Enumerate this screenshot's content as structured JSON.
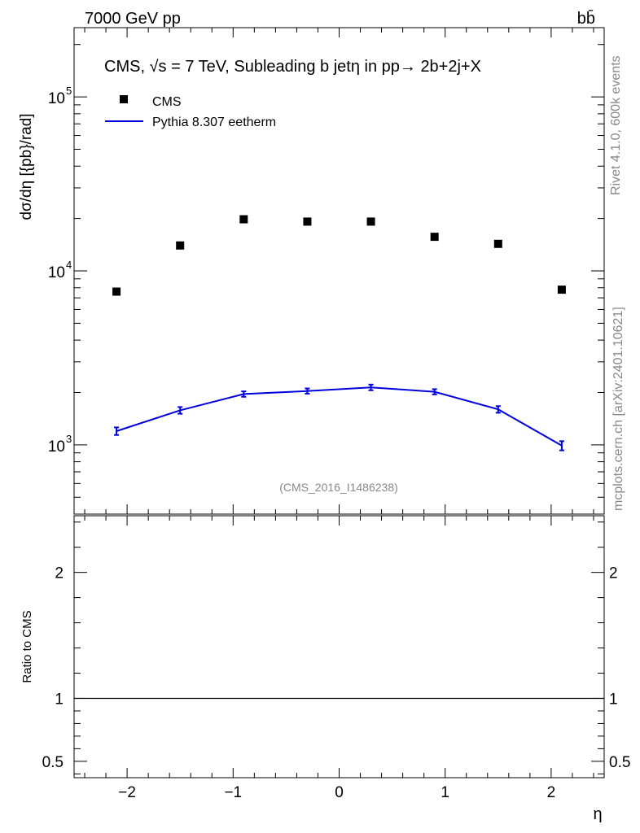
{
  "header": {
    "energy_label": "7000 GeV pp",
    "process_label": "bb̄"
  },
  "side_labels": {
    "rivet": "Rivet 4.1.0,  600k events",
    "mcplots": "mcplots.cern.ch [arXiv:2401.10621]"
  },
  "chart_data": [
    {
      "type": "scatter",
      "title": "CMS, √s = 7 TeV, Subleading b jetη in pp→  2b+2j+X",
      "ylabel": "dσ/dη [{pb}/rad]",
      "xlabel": "η",
      "y_scale": "log",
      "xlim": [
        -2.5,
        2.5
      ],
      "ylim": [
        400,
        250000
      ],
      "x_ticks": [
        -2,
        -1,
        0,
        1,
        2
      ],
      "x_tick_labels": [
        "−2",
        "−1",
        "0",
        "1",
        "2"
      ],
      "y_ticks": [
        1000,
        10000,
        100000
      ],
      "y_tick_labels": [
        "10",
        "10",
        "10"
      ],
      "y_tick_exponents": [
        "3",
        "4",
        "5"
      ],
      "legend_placement": "top-left",
      "annotation": "(CMS_2016_I1486238)",
      "series": [
        {
          "name": "CMS",
          "style": "markers",
          "color": "#000000",
          "x": [
            -2.1,
            -1.5,
            -0.9,
            -0.3,
            0.3,
            0.9,
            1.5,
            2.1
          ],
          "y": [
            7600,
            14000,
            19800,
            19200,
            19200,
            15700,
            14300,
            7800
          ]
        },
        {
          "name": "Pythia 8.307 eetherm",
          "style": "line",
          "color": "#0000dd",
          "x": [
            -2.1,
            -1.5,
            -0.9,
            -0.3,
            0.3,
            0.9,
            1.5,
            2.1
          ],
          "y": [
            1200,
            1580,
            1960,
            2040,
            2140,
            2020,
            1600,
            990
          ],
          "y_err": [
            60,
            70,
            70,
            70,
            80,
            70,
            70,
            60
          ]
        }
      ]
    },
    {
      "type": "line",
      "ylabel": "Ratio to CMS",
      "xlim": [
        -2.5,
        2.5
      ],
      "ylim": [
        0.37,
        2.45
      ],
      "x_ticks": [
        -2,
        -1,
        0,
        1,
        2
      ],
      "y_ticks": [
        0.5,
        1,
        2
      ],
      "y_tick_labels": [
        "0.5",
        "1",
        "2"
      ],
      "reference_line": 1
    }
  ]
}
